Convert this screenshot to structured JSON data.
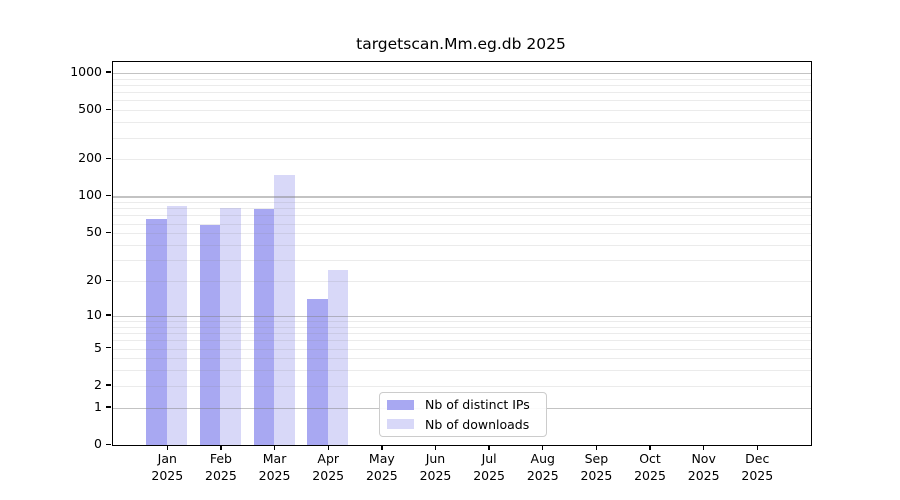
{
  "title": "targetscan.Mm.eg.db 2025",
  "chart_data": {
    "type": "bar",
    "title": "targetscan.Mm.eg.db 2025",
    "xlabel": "",
    "ylabel": "",
    "yscale": "log1p",
    "ylim": [
      0,
      1230
    ],
    "grid": "horizontal",
    "legend_position": "lower-center-inside",
    "categories": [
      "Jan",
      "Feb",
      "Mar",
      "Apr",
      "May",
      "Jun",
      "Jul",
      "Aug",
      "Sep",
      "Oct",
      "Nov",
      "Dec"
    ],
    "x_year_line": "2025",
    "series": [
      {
        "name": "Nb of distinct IPs",
        "color": "#a8a8f2",
        "values": [
          66,
          58,
          79,
          14,
          null,
          null,
          null,
          null,
          null,
          null,
          null,
          null
        ]
      },
      {
        "name": "Nb of downloads",
        "color": "#d8d8f8",
        "values": [
          83,
          81,
          150,
          25,
          null,
          null,
          null,
          null,
          null,
          null,
          null,
          null
        ]
      }
    ],
    "y_ticks": [
      0,
      1,
      2,
      5,
      10,
      20,
      50,
      100,
      200,
      500,
      1000
    ],
    "y_major_gridlines": [
      1,
      10,
      100,
      1000
    ],
    "y_minor_gridlines": [
      2,
      3,
      4,
      5,
      6,
      7,
      8,
      9,
      20,
      30,
      40,
      50,
      60,
      70,
      80,
      90,
      200,
      300,
      400,
      500,
      600,
      700,
      800,
      900
    ],
    "colors": {
      "axis": "#000000",
      "grid_overlay": "#808080",
      "grid_major_opacity": 0.47,
      "grid_minor_opacity": 0.16,
      "background": "#ffffff"
    }
  }
}
